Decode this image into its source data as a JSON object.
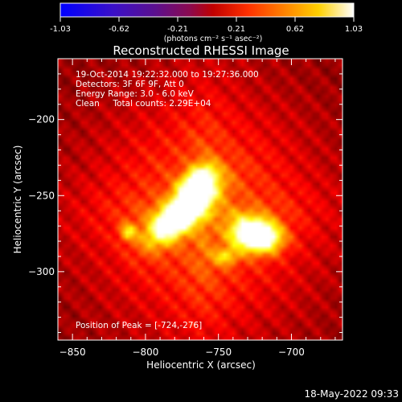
{
  "colorbar": {
    "ticks": [
      "-1.03",
      "-0.62",
      "-0.21",
      "0.21",
      "0.62",
      "1.03"
    ],
    "range": [
      -1.03,
      1.03
    ],
    "unit_label": "(photons cm⁻² s⁻¹ asec⁻²)"
  },
  "image": {
    "title": "Reconstructed RHESSI Image",
    "info_lines": [
      "19-Oct-2014 19:22:32.000 to 19:27:36.000",
      "Detectors: 3F 6F 9F, Att 0",
      "Energy Range: 3.0 - 6.0 keV",
      "Clean     Total counts: 2.29E+04"
    ],
    "peak_label": "Position of Peak = [-724,-276]",
    "colormap": "hot"
  },
  "footer": {
    "timestamp": "18-May-2022 09:33"
  },
  "chart_data": {
    "type": "heatmap",
    "title": "Reconstructed RHESSI Image",
    "xlabel": "Heliocentric X (arcsec)",
    "ylabel": "Heliocentric Y (arcsec)",
    "xlim": [
      -860,
      -665
    ],
    "ylim": [
      -345,
      -160
    ],
    "xticks": [
      -850,
      -800,
      -750,
      -700
    ],
    "yticks": [
      -200,
      -250,
      -300
    ],
    "xtick_labels": [
      "−850",
      "−800",
      "−750",
      "−700"
    ],
    "ytick_labels": [
      "−200",
      "−250",
      "−300"
    ],
    "peak": [
      -724,
      -276
    ],
    "sources": [
      {
        "x": -775,
        "y": -262,
        "sx": 18,
        "sy": 7,
        "angle_deg": 38,
        "amp": 0.95
      },
      {
        "x": -765,
        "y": -242,
        "sx": 10,
        "sy": 6,
        "angle_deg": 40,
        "amp": 0.7
      },
      {
        "x": -724,
        "y": -276,
        "sx": 11,
        "sy": 7,
        "angle_deg": -10,
        "amp": 1.0
      },
      {
        "x": -812,
        "y": -274,
        "sx": 4,
        "sy": 4,
        "angle_deg": 0,
        "amp": 0.35
      },
      {
        "x": -745,
        "y": -290,
        "sx": 6,
        "sy": 4,
        "angle_deg": 0,
        "amp": 0.3
      }
    ]
  }
}
